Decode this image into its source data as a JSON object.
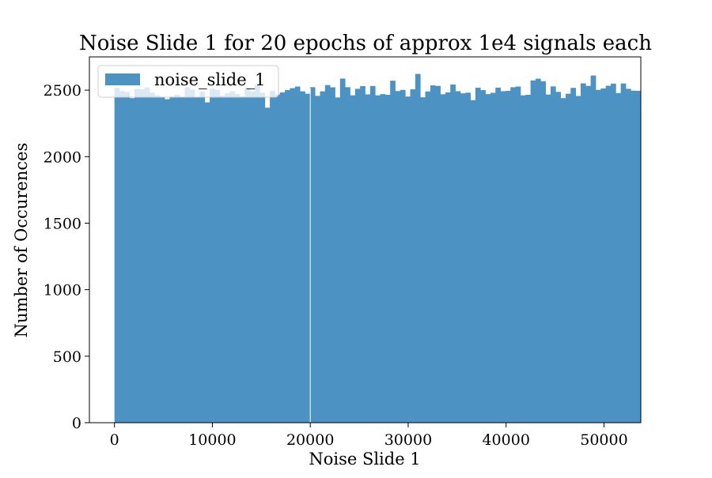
{
  "chart_data": {
    "type": "bar",
    "title": "Noise Slide 1 for 20 epochs of approx 1e4 signals each",
    "xlabel": "Noise Slide 1",
    "ylabel": "Number of Occurences",
    "xlim": [
      -2560,
      53760
    ],
    "ylim": [
      0,
      2750
    ],
    "xticks": [
      0,
      10000,
      20000,
      30000,
      40000,
      50000
    ],
    "yticks": [
      0,
      500,
      1000,
      1500,
      2000,
      2500
    ],
    "bin_start": 0,
    "bin_width": 512,
    "bar_color": "#4c92c3",
    "legend": {
      "label": "noise_slide_1",
      "position": "upper-left"
    },
    "grid": false,
    "values": [
      2517,
      2493,
      2486,
      2440,
      2509,
      2507,
      2520,
      2481,
      2461,
      2450,
      2432,
      2453,
      2465,
      2448,
      2521,
      2503,
      2449,
      2488,
      2408,
      2511,
      2502,
      2458,
      2477,
      2491,
      2471,
      2454,
      2519,
      2489,
      2536,
      2481,
      2368,
      2495,
      2467,
      2483,
      2501,
      2515,
      2527,
      2491,
      2473,
      2522,
      2457,
      2491,
      2538,
      2521,
      2445,
      2587,
      2522,
      2461,
      2510,
      2530,
      2468,
      2531,
      2461,
      2470,
      2465,
      2571,
      2493,
      2502,
      2452,
      2506,
      2622,
      2446,
      2490,
      2536,
      2532,
      2469,
      2483,
      2542,
      2492,
      2476,
      2481,
      2425,
      2518,
      2500,
      2470,
      2480,
      2519,
      2492,
      2495,
      2522,
      2527,
      2461,
      2465,
      2573,
      2586,
      2567,
      2467,
      2528,
      2487,
      2440,
      2473,
      2517,
      2456,
      2551,
      2532,
      2610,
      2502,
      2513,
      2533,
      2549,
      2478,
      2550,
      2510,
      2496,
      2495
    ]
  }
}
